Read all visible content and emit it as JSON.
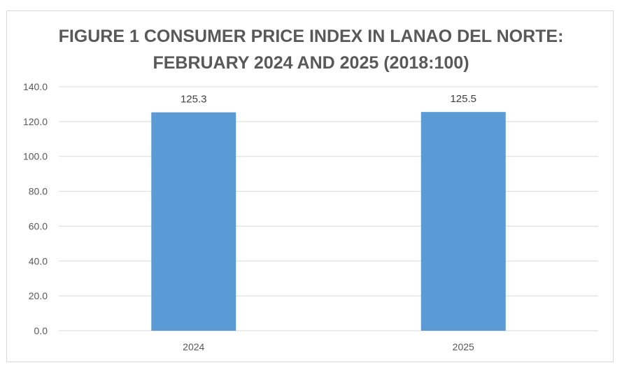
{
  "chart_data": {
    "type": "bar",
    "title_line1": "FIGURE 1 CONSUMER PRICE INDEX IN LANAO DEL NORTE:",
    "title_line2": "FEBRUARY 2024 AND 2025 (2018:100)",
    "categories": [
      "2024",
      "2025"
    ],
    "values": [
      125.3,
      125.5
    ],
    "data_labels": [
      "125.3",
      "125.5"
    ],
    "ylim": [
      0,
      140
    ],
    "yticks": [
      "0.0",
      "20.0",
      "40.0",
      "60.0",
      "80.0",
      "100.0",
      "120.0",
      "140.0"
    ],
    "xlabel": "",
    "ylabel": "",
    "grid": true,
    "legend": "none",
    "bar_color": "#5b9bd5",
    "grid_color": "#d9d9d9"
  }
}
